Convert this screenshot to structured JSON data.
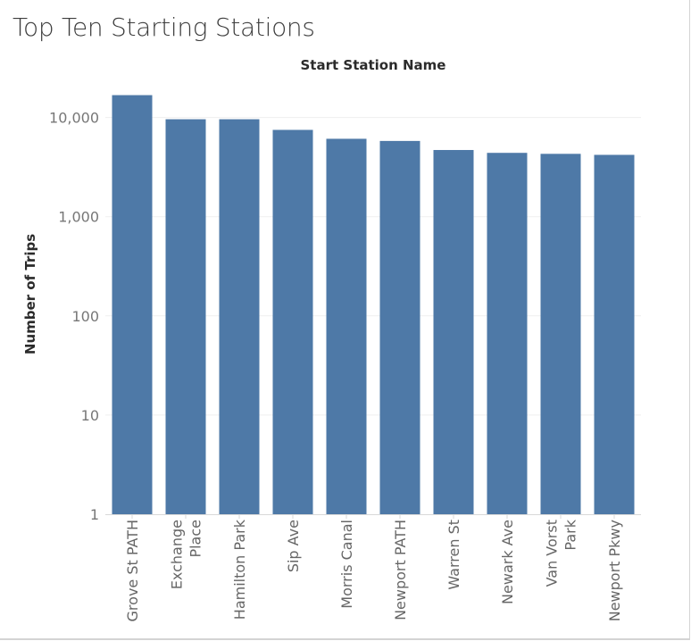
{
  "chart_data": {
    "type": "bar",
    "title": "Top Ten Starting Stations",
    "xlabel": "Start Station Name",
    "ylabel": "Number of Trips",
    "yscale": "log",
    "ylim": [
      1,
      30000
    ],
    "yticks": [
      {
        "value": 1,
        "label": "1"
      },
      {
        "value": 10,
        "label": "10"
      },
      {
        "value": 100,
        "label": "100"
      },
      {
        "value": 1000,
        "label": "1,000"
      },
      {
        "value": 10000,
        "label": "10,000"
      }
    ],
    "categories": [
      [
        "Grove St PATH"
      ],
      [
        "Exchange",
        "Place"
      ],
      [
        "Hamilton Park"
      ],
      [
        "Sip Ave"
      ],
      [
        "Morris Canal"
      ],
      [
        "Newport PATH"
      ],
      [
        "Warren St"
      ],
      [
        "Newark Ave"
      ],
      [
        "Van Vorst",
        "Park"
      ],
      [
        "Newport Pkwy"
      ]
    ],
    "values": [
      16800,
      9600,
      9600,
      7500,
      6100,
      5800,
      4700,
      4400,
      4300,
      4200
    ],
    "bar_color": "#4e79a7",
    "grid": true,
    "legend": "none"
  }
}
